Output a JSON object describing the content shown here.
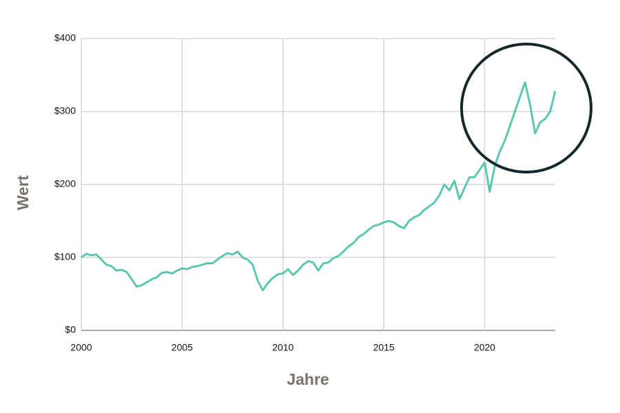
{
  "chart_data": {
    "type": "line",
    "x_label": "Jahre",
    "y_label": "Wert",
    "x": [
      2000,
      2000.25,
      2000.5,
      2000.75,
      2001,
      2001.25,
      2001.5,
      2001.75,
      2002,
      2002.25,
      2002.5,
      2002.75,
      2003,
      2003.25,
      2003.5,
      2003.75,
      2004,
      2004.25,
      2004.5,
      2004.75,
      2005,
      2005.25,
      2005.5,
      2005.75,
      2006,
      2006.25,
      2006.5,
      2006.75,
      2007,
      2007.25,
      2007.5,
      2007.75,
      2008,
      2008.25,
      2008.5,
      2008.75,
      2009,
      2009.25,
      2009.5,
      2009.75,
      2010,
      2010.25,
      2010.5,
      2010.75,
      2011,
      2011.25,
      2011.5,
      2011.75,
      2012,
      2012.25,
      2012.5,
      2012.75,
      2013,
      2013.25,
      2013.5,
      2013.75,
      2014,
      2014.25,
      2014.5,
      2014.75,
      2015,
      2015.25,
      2015.5,
      2015.75,
      2016,
      2016.25,
      2016.5,
      2016.75,
      2017,
      2017.25,
      2017.5,
      2017.75,
      2018,
      2018.25,
      2018.5,
      2018.75,
      2019,
      2019.25,
      2019.5,
      2019.75,
      2020,
      2020.25,
      2020.5,
      2020.75,
      2021,
      2021.25,
      2021.5,
      2021.75,
      2022,
      2022.25,
      2022.5,
      2022.75,
      2023,
      2023.25,
      2023.5
    ],
    "series": [
      {
        "color": "#5cc6b0",
        "values": [
          100,
          105,
          103,
          104,
          97,
          90,
          88,
          82,
          83,
          80,
          70,
          60,
          62,
          66,
          70,
          73,
          79,
          80,
          78,
          82,
          85,
          84,
          87,
          88,
          90,
          92,
          92,
          97,
          102,
          106,
          104,
          108,
          100,
          97,
          90,
          68,
          55,
          65,
          72,
          77,
          78,
          84,
          76,
          82,
          90,
          95,
          93,
          82,
          92,
          93,
          99,
          102,
          108,
          115,
          120,
          128,
          132,
          138,
          143,
          145,
          148,
          150,
          148,
          143,
          140,
          150,
          155,
          158,
          165,
          170,
          175,
          185,
          200,
          192,
          205,
          180,
          195,
          210,
          210,
          220,
          230,
          190,
          225,
          245,
          260,
          280,
          300,
          320,
          340,
          310,
          270,
          285,
          290,
          300,
          328
        ]
      }
    ],
    "xlim": [
      2000,
      2023.5
    ],
    "ylim": [
      0,
      400
    ],
    "xticks": [
      2000,
      2005,
      2010,
      2015,
      2020
    ],
    "yticks": [
      {
        "value": 0,
        "label": "$0"
      },
      {
        "value": 100,
        "label": "$100"
      },
      {
        "value": 200,
        "label": "$200"
      },
      {
        "value": 300,
        "label": "$300"
      },
      {
        "value": 400,
        "label": "$400"
      }
    ],
    "grid": true
  }
}
